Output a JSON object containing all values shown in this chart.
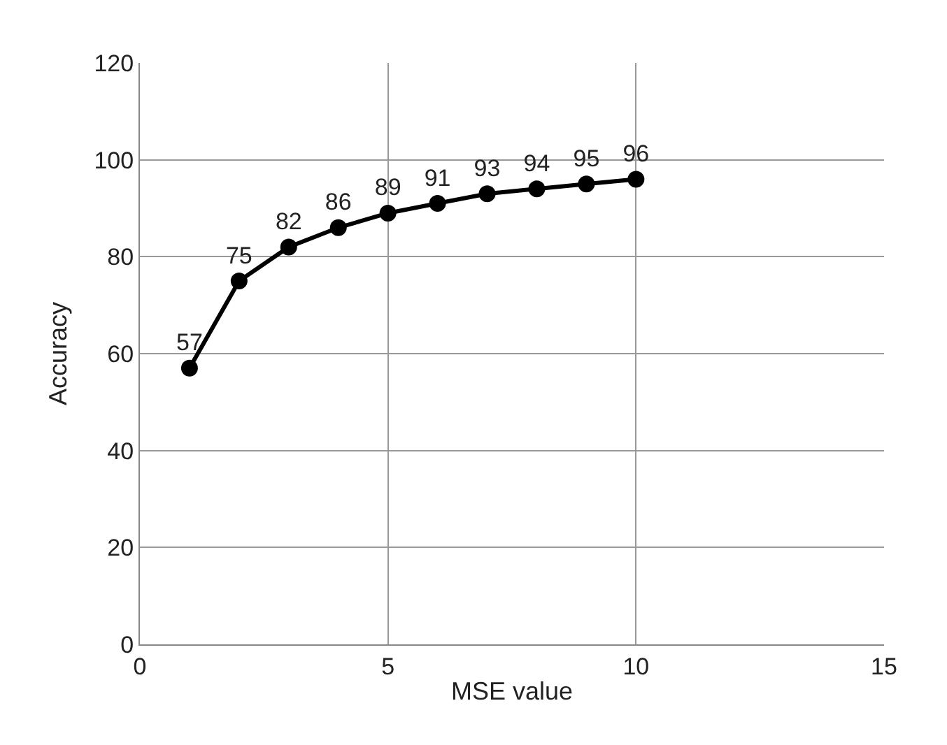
{
  "chart_data": {
    "type": "line",
    "xlabel": "MSE value",
    "ylabel": "Accuracy",
    "x": [
      1,
      2,
      3,
      4,
      5,
      6,
      7,
      8,
      9,
      10
    ],
    "series": [
      {
        "color": "#000000",
        "values": [
          57,
          75,
          82,
          86,
          89,
          91,
          93,
          94,
          95,
          96
        ]
      }
    ],
    "xlim": [
      0,
      15
    ],
    "xticks": [
      0,
      5,
      10,
      15
    ],
    "ylim": [
      0,
      120
    ],
    "yticks": [
      0,
      20,
      40,
      60,
      80,
      100,
      120
    ],
    "grid": true,
    "marker": "circle",
    "line_style": "solid",
    "data_labels": true
  }
}
